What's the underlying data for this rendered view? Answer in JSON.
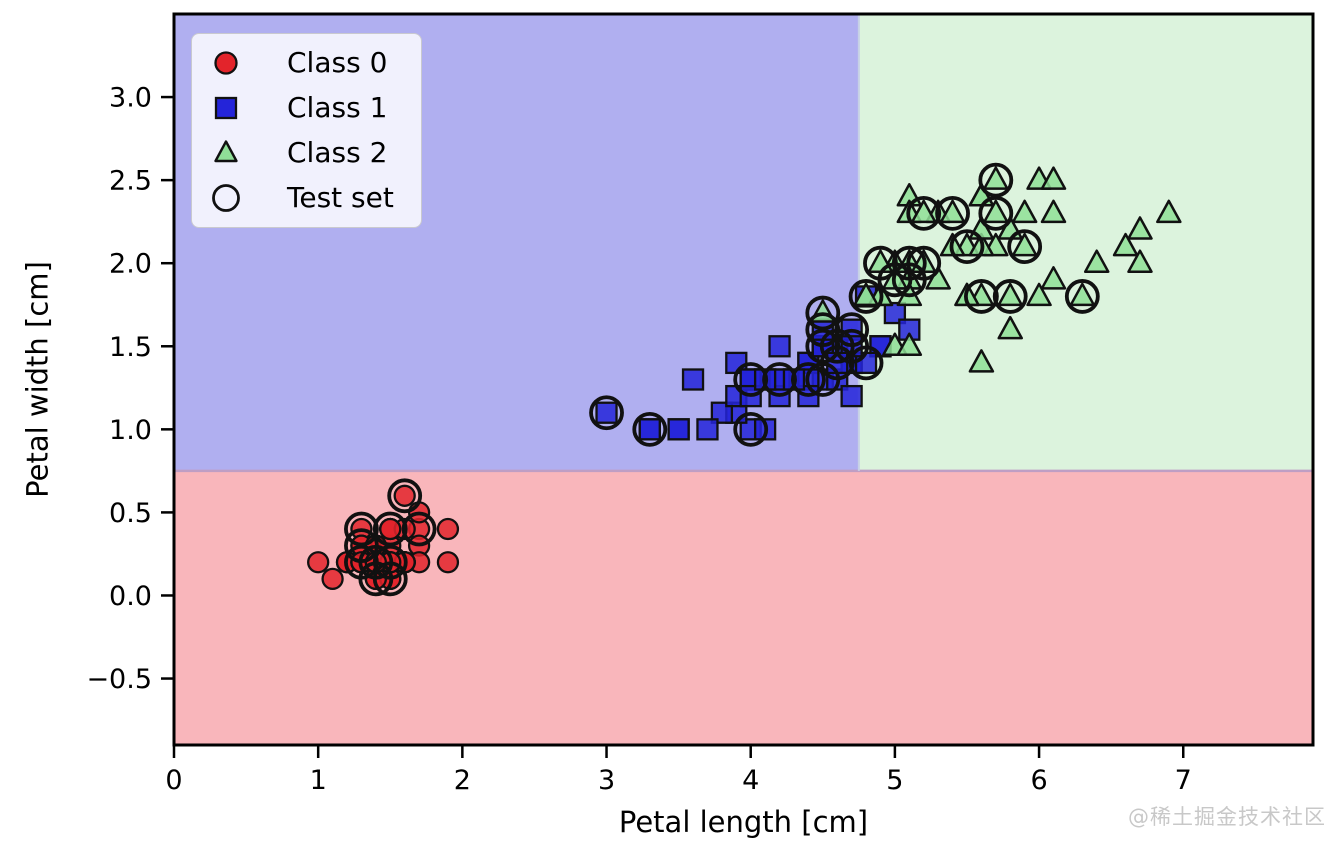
{
  "figure": {
    "watermark": "@稀土掘金技术社区"
  },
  "chart_data": {
    "type": "scatter",
    "title": "",
    "xlabel": "Petal length [cm]",
    "ylabel": "Petal width [cm]",
    "xlim": [
      0.0,
      7.9
    ],
    "ylim": [
      -0.9,
      3.5
    ],
    "xticks": [
      0,
      1,
      2,
      3,
      4,
      5,
      6,
      7
    ],
    "yticks": [
      -0.5,
      0.0,
      0.5,
      1.0,
      1.5,
      2.0,
      2.5,
      3.0
    ],
    "grid": false,
    "legend": {
      "position": "upper-left",
      "entries": [
        {
          "label": "Class 0",
          "marker": "circle",
          "color": "#e3242b"
        },
        {
          "label": "Class 1",
          "marker": "square",
          "color": "#2424d9"
        },
        {
          "label": "Class 2",
          "marker": "triangle",
          "color": "#8fdf97"
        },
        {
          "label": "Test set",
          "marker": "open-circle",
          "color": "#000000"
        }
      ]
    },
    "decision_regions": {
      "boundary_petal_width": 0.75,
      "boundary_petal_length": 4.75,
      "regions": [
        {
          "class": "Class 0",
          "color": "#f9b6bb",
          "extent": "petal width < 0.75"
        },
        {
          "class": "Class 1",
          "color": "#b0aff0",
          "extent": "petal width >= 0.75 and petal length < 4.75"
        },
        {
          "class": "Class 2",
          "color": "#dcf3dd",
          "extent": "petal width >= 0.75 and petal length >= 4.75"
        }
      ]
    },
    "point_format": "[petal_length_cm, petal_width_cm, in_test_set]",
    "series": [
      {
        "name": "Class 0",
        "marker": "circle",
        "color": "#e3242b",
        "points": [
          [
            1.4,
            0.2,
            1
          ],
          [
            1.4,
            0.2,
            0
          ],
          [
            1.3,
            0.2,
            1
          ],
          [
            1.5,
            0.2,
            1
          ],
          [
            1.4,
            0.2,
            0
          ],
          [
            1.7,
            0.4,
            1
          ],
          [
            1.4,
            0.3,
            0
          ],
          [
            1.5,
            0.2,
            0
          ],
          [
            1.4,
            0.2,
            0
          ],
          [
            1.5,
            0.1,
            1
          ],
          [
            1.5,
            0.2,
            0
          ],
          [
            1.6,
            0.2,
            0
          ],
          [
            1.4,
            0.1,
            1
          ],
          [
            1.1,
            0.1,
            0
          ],
          [
            1.2,
            0.2,
            0
          ],
          [
            1.5,
            0.4,
            1
          ],
          [
            1.3,
            0.4,
            1
          ],
          [
            1.4,
            0.3,
            0
          ],
          [
            1.7,
            0.3,
            0
          ],
          [
            1.5,
            0.3,
            0
          ],
          [
            1.7,
            0.2,
            0
          ],
          [
            1.5,
            0.4,
            0
          ],
          [
            1.0,
            0.2,
            0
          ],
          [
            1.7,
            0.5,
            0
          ],
          [
            1.9,
            0.2,
            0
          ],
          [
            1.6,
            0.2,
            0
          ],
          [
            1.6,
            0.4,
            0
          ],
          [
            1.5,
            0.2,
            0
          ],
          [
            1.4,
            0.2,
            0
          ],
          [
            1.6,
            0.2,
            0
          ],
          [
            1.6,
            0.2,
            0
          ],
          [
            1.5,
            0.4,
            0
          ],
          [
            1.5,
            0.1,
            0
          ],
          [
            1.4,
            0.2,
            0
          ],
          [
            1.5,
            0.2,
            0
          ],
          [
            1.2,
            0.2,
            0
          ],
          [
            1.3,
            0.2,
            0
          ],
          [
            1.4,
            0.1,
            0
          ],
          [
            1.3,
            0.2,
            0
          ],
          [
            1.5,
            0.2,
            0
          ],
          [
            1.3,
            0.3,
            1
          ],
          [
            1.3,
            0.3,
            0
          ],
          [
            1.3,
            0.2,
            0
          ],
          [
            1.6,
            0.6,
            1
          ],
          [
            1.9,
            0.4,
            0
          ],
          [
            1.4,
            0.3,
            0
          ],
          [
            1.6,
            0.2,
            0
          ],
          [
            1.4,
            0.2,
            0
          ],
          [
            1.5,
            0.2,
            0
          ],
          [
            1.4,
            0.2,
            0
          ]
        ]
      },
      {
        "name": "Class 1",
        "marker": "square",
        "color": "#2424d9",
        "points": [
          [
            4.7,
            1.4,
            0
          ],
          [
            4.5,
            1.5,
            1
          ],
          [
            4.9,
            1.5,
            0
          ],
          [
            4.0,
            1.3,
            1
          ],
          [
            4.6,
            1.5,
            1
          ],
          [
            4.5,
            1.3,
            1
          ],
          [
            4.7,
            1.6,
            1
          ],
          [
            3.3,
            1.0,
            1
          ],
          [
            4.6,
            1.3,
            0
          ],
          [
            3.9,
            1.4,
            0
          ],
          [
            3.5,
            1.0,
            0
          ],
          [
            4.2,
            1.5,
            0
          ],
          [
            4.0,
            1.0,
            1
          ],
          [
            4.7,
            1.4,
            0
          ],
          [
            3.6,
            1.3,
            0
          ],
          [
            4.4,
            1.4,
            0
          ],
          [
            4.5,
            1.5,
            0
          ],
          [
            4.1,
            1.0,
            0
          ],
          [
            4.5,
            1.5,
            0
          ],
          [
            3.9,
            1.1,
            0
          ],
          [
            4.8,
            1.8,
            1
          ],
          [
            4.0,
            1.3,
            0
          ],
          [
            4.9,
            1.5,
            0
          ],
          [
            4.7,
            1.2,
            0
          ],
          [
            4.3,
            1.3,
            0
          ],
          [
            4.4,
            1.4,
            0
          ],
          [
            4.8,
            1.4,
            1
          ],
          [
            5.0,
            1.7,
            0
          ],
          [
            4.5,
            1.5,
            0
          ],
          [
            3.5,
            1.0,
            0
          ],
          [
            3.8,
            1.1,
            0
          ],
          [
            3.7,
            1.0,
            0
          ],
          [
            3.9,
            1.2,
            0
          ],
          [
            5.1,
            1.6,
            0
          ],
          [
            4.5,
            1.5,
            0
          ],
          [
            4.5,
            1.6,
            1
          ],
          [
            4.7,
            1.5,
            1
          ],
          [
            4.4,
            1.3,
            1
          ],
          [
            4.1,
            1.3,
            0
          ],
          [
            4.0,
            1.3,
            0
          ],
          [
            4.4,
            1.2,
            0
          ],
          [
            4.6,
            1.4,
            1
          ],
          [
            4.0,
            1.2,
            0
          ],
          [
            3.3,
            1.0,
            0
          ],
          [
            4.2,
            1.3,
            1
          ],
          [
            4.2,
            1.2,
            0
          ],
          [
            4.2,
            1.3,
            0
          ],
          [
            4.3,
            1.3,
            0
          ],
          [
            3.0,
            1.1,
            1
          ],
          [
            4.1,
            1.3,
            0
          ]
        ]
      },
      {
        "name": "Class 2",
        "marker": "triangle",
        "color": "#8fdf97",
        "points": [
          [
            6.0,
            2.5,
            0
          ],
          [
            5.1,
            1.9,
            1
          ],
          [
            5.9,
            2.1,
            1
          ],
          [
            5.6,
            1.8,
            1
          ],
          [
            5.8,
            2.2,
            0
          ],
          [
            6.6,
            2.1,
            0
          ],
          [
            4.5,
            1.7,
            1
          ],
          [
            6.3,
            1.8,
            1
          ],
          [
            5.8,
            1.8,
            1
          ],
          [
            6.1,
            2.5,
            0
          ],
          [
            5.1,
            2.0,
            1
          ],
          [
            5.3,
            1.9,
            0
          ],
          [
            5.5,
            2.1,
            1
          ],
          [
            5.0,
            2.0,
            0
          ],
          [
            5.1,
            2.4,
            0
          ],
          [
            5.3,
            2.3,
            0
          ],
          [
            5.5,
            1.8,
            0
          ],
          [
            6.7,
            2.2,
            0
          ],
          [
            6.9,
            2.3,
            0
          ],
          [
            5.0,
            1.5,
            0
          ],
          [
            5.7,
            2.3,
            1
          ],
          [
            4.9,
            2.0,
            1
          ],
          [
            6.7,
            2.0,
            0
          ],
          [
            4.9,
            1.8,
            0
          ],
          [
            5.7,
            2.1,
            0
          ],
          [
            6.0,
            1.8,
            0
          ],
          [
            4.8,
            1.8,
            0
          ],
          [
            4.9,
            1.8,
            0
          ],
          [
            5.6,
            2.1,
            0
          ],
          [
            5.8,
            1.6,
            0
          ],
          [
            6.1,
            1.9,
            0
          ],
          [
            6.4,
            2.0,
            0
          ],
          [
            5.6,
            2.2,
            0
          ],
          [
            5.1,
            1.5,
            0
          ],
          [
            5.6,
            1.4,
            0
          ],
          [
            6.1,
            2.3,
            0
          ],
          [
            5.6,
            2.4,
            0
          ],
          [
            5.5,
            1.8,
            0
          ],
          [
            4.8,
            1.8,
            0
          ],
          [
            5.4,
            2.1,
            0
          ],
          [
            5.6,
            2.4,
            0
          ],
          [
            5.1,
            2.3,
            0
          ],
          [
            5.1,
            1.9,
            0
          ],
          [
            5.9,
            2.3,
            0
          ],
          [
            5.7,
            2.5,
            1
          ],
          [
            5.2,
            2.3,
            1
          ],
          [
            5.0,
            1.9,
            1
          ],
          [
            5.2,
            2.0,
            1
          ],
          [
            5.4,
            2.3,
            1
          ],
          [
            5.1,
            1.8,
            0
          ]
        ]
      }
    ]
  }
}
